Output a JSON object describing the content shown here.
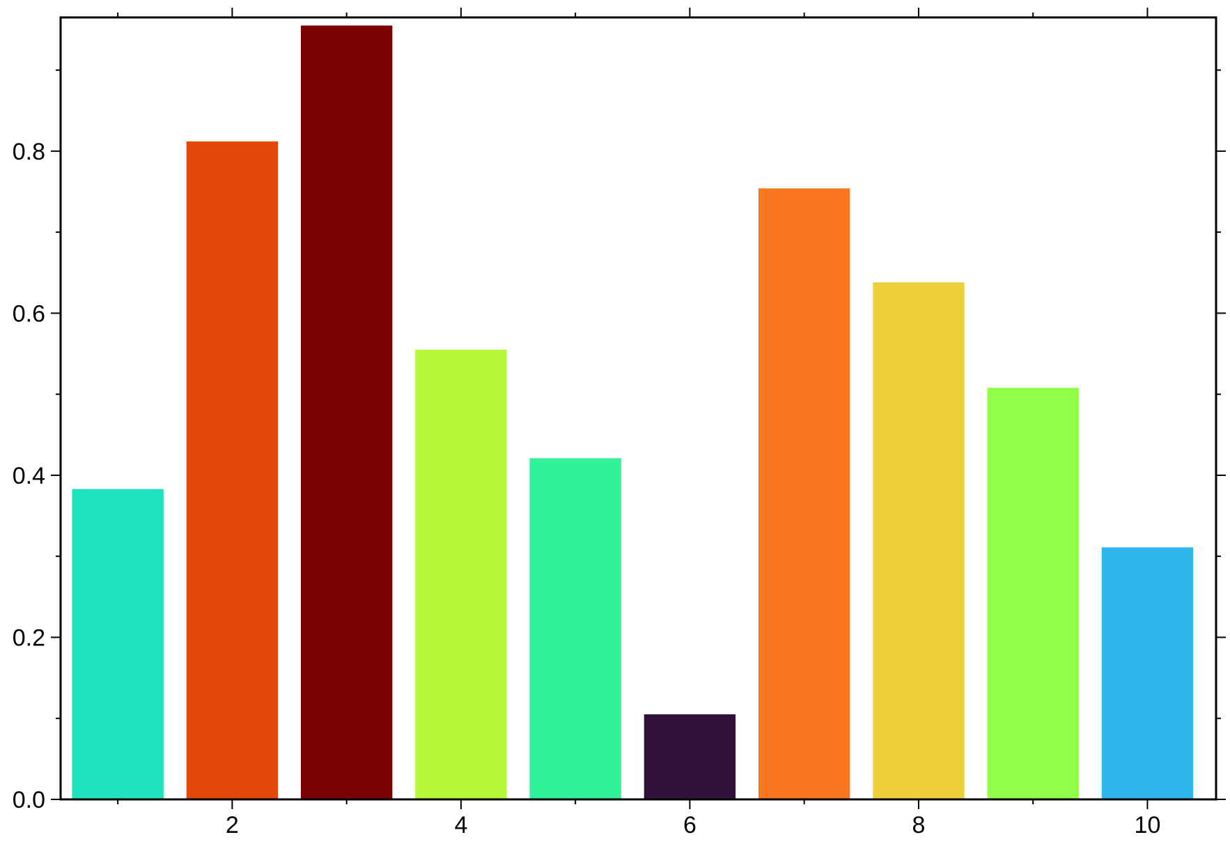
{
  "chart_data": {
    "type": "bar",
    "title": "",
    "xlabel": "",
    "ylabel": "",
    "x": [
      1,
      2,
      3,
      4,
      5,
      6,
      7,
      8,
      9,
      10
    ],
    "values": [
      0.383,
      0.812,
      0.955,
      0.555,
      0.421,
      0.105,
      0.754,
      0.638,
      0.508,
      0.311
    ],
    "colors": [
      "#1de4bc",
      "#e3470a",
      "#7a0403",
      "#b5f83a",
      "#31f299",
      "#30123b",
      "#f8761e",
      "#edd03a",
      "#90ff48",
      "#2eb6ef"
    ],
    "xlim": [
      0.5,
      10.6
    ],
    "ylim": [
      0,
      0.965
    ],
    "xticks_major": [
      2,
      4,
      6,
      8,
      10
    ],
    "xticks_minor": [
      1,
      3,
      5,
      7,
      9
    ],
    "xtick_labels": [
      "2",
      "4",
      "6",
      "8",
      "10"
    ],
    "yticks_major": [
      0,
      0.2,
      0.4,
      0.6,
      0.8
    ],
    "yticks_minor": [
      0.1,
      0.3,
      0.5,
      0.7,
      0.9
    ],
    "ytick_labels": [
      "0.0",
      "0.2",
      "0.4",
      "0.6",
      "0.8"
    ],
    "bar_width": 0.8,
    "grid": false,
    "legend": "none"
  }
}
